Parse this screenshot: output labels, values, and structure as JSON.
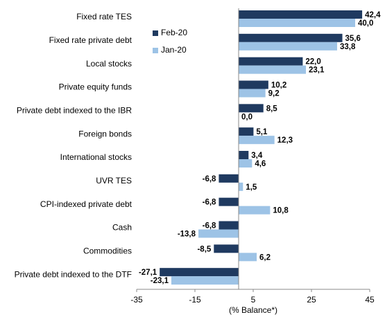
{
  "chart_data": {
    "type": "hbar",
    "xlabel": "(% Balance*)",
    "categories": [
      "Fixed rate TES",
      "Fixed rate private debt",
      "Local stocks",
      "Private equity funds",
      "Private debt indexed to the IBR",
      "Foreign bonds",
      "International stocks",
      "UVR TES",
      "CPI-indexed private debt",
      "Cash",
      "Commodities",
      "Private debt indexed to the DTF"
    ],
    "series": [
      {
        "name": "Feb-20",
        "color": "#1f3a60",
        "values": [
          42.4,
          35.6,
          22.0,
          10.2,
          8.5,
          5.1,
          3.4,
          -6.8,
          -6.8,
          -6.8,
          -8.5,
          -27.1
        ],
        "value_labels": [
          "42,4",
          "35,6",
          "22,0",
          "10,2",
          "8,5",
          "5,1",
          "3,4",
          "-6,8",
          "-6,8",
          "-6,8",
          "-8,5",
          "-27,1"
        ]
      },
      {
        "name": "Jan-20",
        "color": "#9dc3e6",
        "values": [
          40.0,
          33.8,
          23.1,
          9.2,
          0.0,
          12.3,
          4.6,
          1.5,
          10.8,
          -13.8,
          6.2,
          -23.1
        ],
        "value_labels": [
          "40,0",
          "33,8",
          "23,1",
          "9,2",
          "0,0",
          "12,3",
          "4,6",
          "1,5",
          "10,8",
          "-13,8",
          "6,2",
          "-23,1"
        ]
      }
    ],
    "xlim": [
      -35,
      45
    ],
    "xticks": [
      -35,
      -15,
      5,
      25,
      45
    ]
  }
}
